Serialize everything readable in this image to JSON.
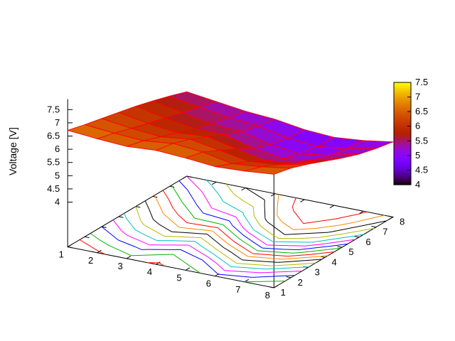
{
  "chart_data": {
    "type": "surface",
    "description": "gnuplot-style 3D pm3d surface of voltage on an 8x8 grid with red mesh lines, contour lines projected onto the base plane, and a vertical color scale on the right",
    "zlabel": "Voltage [V]",
    "x_range": [
      1,
      8
    ],
    "y_range": [
      1,
      8
    ],
    "x_tick_labels": [
      "1",
      "2",
      "3",
      "4",
      "5",
      "6",
      "7",
      "8"
    ],
    "y_tick_labels": [
      "1",
      "2",
      "3",
      "4",
      "5",
      "6",
      "7",
      "8"
    ],
    "z_axis_ticks": [
      4,
      4.5,
      5,
      5.5,
      6,
      6.5,
      7,
      7.5
    ],
    "z_tick_labels": [
      "4",
      "4.5",
      "5",
      "5.5",
      "6",
      "6.5",
      "7",
      "7.5"
    ],
    "z_grid": [
      [
        6.72,
        6.62,
        6.55,
        6.62,
        6.55,
        6.45,
        6.5,
        6.6
      ],
      [
        6.55,
        6.45,
        6.38,
        6.5,
        6.4,
        6.18,
        6.28,
        6.45
      ],
      [
        6.4,
        6.25,
        6.15,
        6.28,
        6.08,
        5.88,
        5.98,
        6.22
      ],
      [
        6.25,
        6.05,
        5.92,
        6.0,
        5.75,
        5.52,
        5.65,
        5.95
      ],
      [
        6.1,
        5.88,
        5.7,
        5.68,
        5.4,
        5.22,
        5.38,
        5.68
      ],
      [
        5.92,
        5.7,
        5.5,
        5.42,
        5.15,
        5.02,
        5.18,
        5.45
      ],
      [
        5.72,
        5.52,
        5.35,
        5.25,
        5.02,
        4.92,
        5.05,
        5.28
      ],
      [
        5.5,
        5.35,
        5.2,
        5.12,
        4.95,
        4.88,
        4.98,
        5.15
      ]
    ],
    "surface": {
      "mesh_color": "#ff0000",
      "palette": "gnuplot rgbformulae 7,5,15 (black-purple-blue-red-orange-yellow)"
    },
    "contours": {
      "levels": [
        6.6,
        6.5,
        6.4,
        6.3,
        6.2,
        6.1,
        6.0,
        5.9,
        5.8,
        5.7,
        5.6,
        5.5,
        5.4,
        5.3,
        5.2,
        5.1,
        5.0
      ],
      "colors": [
        "#ff0000",
        "#00b400",
        "#0000ff",
        "#ff00ff",
        "#00c0c0",
        "#b8b800",
        "#000000",
        "#ff8800"
      ]
    },
    "colorbar": {
      "range": [
        4,
        7.5
      ],
      "ticks": [
        4,
        4.5,
        5,
        5.5,
        6,
        6.5,
        7,
        7.5
      ],
      "tick_labels": [
        "4",
        "4.5",
        "5",
        "5.5",
        "6",
        "6.5",
        "7",
        "7.5"
      ]
    },
    "view": {
      "rot_x": 60,
      "rot_z": 30
    },
    "grid_lines": "off",
    "legend": "none"
  }
}
